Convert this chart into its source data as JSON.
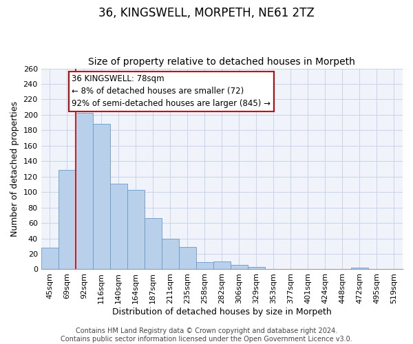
{
  "title": "36, KINGSWELL, MORPETH, NE61 2TZ",
  "subtitle": "Size of property relative to detached houses in Morpeth",
  "xlabel": "Distribution of detached houses by size in Morpeth",
  "ylabel": "Number of detached properties",
  "bar_labels": [
    "45sqm",
    "69sqm",
    "92sqm",
    "116sqm",
    "140sqm",
    "164sqm",
    "187sqm",
    "211sqm",
    "235sqm",
    "258sqm",
    "282sqm",
    "306sqm",
    "329sqm",
    "353sqm",
    "377sqm",
    "401sqm",
    "424sqm",
    "448sqm",
    "472sqm",
    "495sqm",
    "519sqm"
  ],
  "bar_values": [
    28,
    129,
    203,
    188,
    111,
    103,
    66,
    40,
    29,
    9,
    10,
    6,
    3,
    0,
    0,
    0,
    0,
    0,
    2,
    0,
    0
  ],
  "bar_color": "#b8d0ea",
  "bar_edge_color": "#6699cc",
  "vline_x_index": 1,
  "vline_color": "#cc0000",
  "annotation_line1": "36 KINGSWELL: 78sqm",
  "annotation_line2": "← 8% of detached houses are smaller (72)",
  "annotation_line3": "92% of semi-detached houses are larger (845) →",
  "annotation_box_color": "#cc0000",
  "ylim": [
    0,
    260
  ],
  "yticks": [
    0,
    20,
    40,
    60,
    80,
    100,
    120,
    140,
    160,
    180,
    200,
    220,
    240,
    260
  ],
  "footer_line1": "Contains HM Land Registry data © Crown copyright and database right 2024.",
  "footer_line2": "Contains public sector information licensed under the Open Government Licence v3.0.",
  "bg_color": "#ffffff",
  "plot_bg_color": "#f0f4fa",
  "grid_color": "#c8d4e8",
  "title_fontsize": 12,
  "subtitle_fontsize": 10,
  "axis_label_fontsize": 9,
  "tick_fontsize": 8,
  "annotation_fontsize": 8.5,
  "footer_fontsize": 7
}
